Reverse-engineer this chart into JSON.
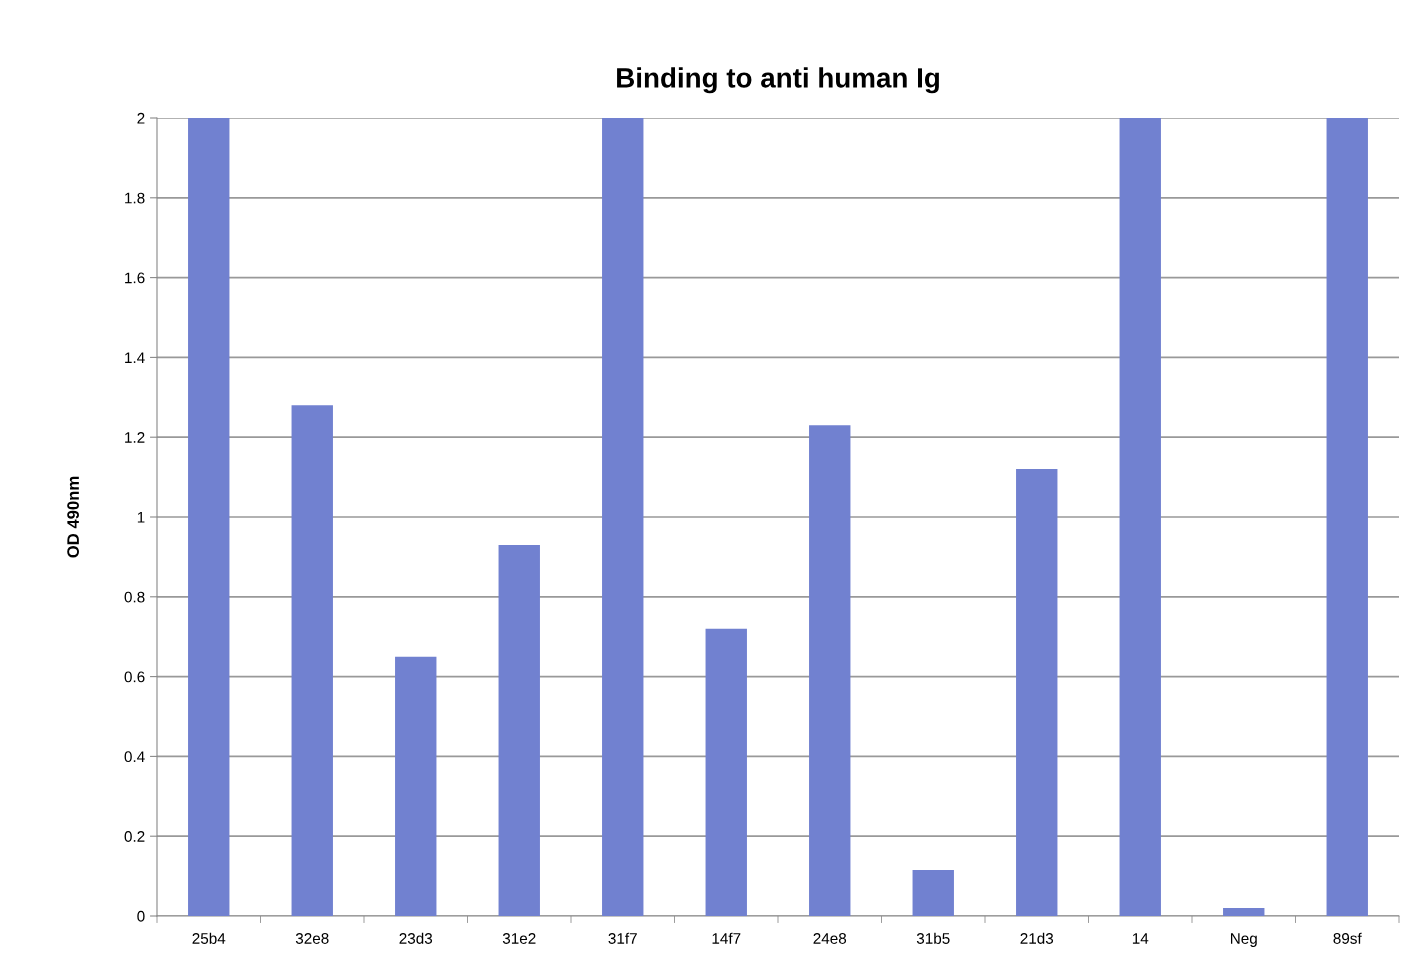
{
  "chart_data": {
    "type": "bar",
    "title": "Binding to anti human Ig",
    "ylabel": "OD 490nm",
    "categories": [
      "25b4",
      "32e8",
      "23d3",
      "31e2",
      "31f7",
      "14f7",
      "24e8",
      "31b5",
      "21d3",
      "14",
      "Neg",
      "89sf"
    ],
    "values": [
      2,
      1.28,
      0.65,
      0.93,
      2,
      0.72,
      1.23,
      0.115,
      1.12,
      2,
      0.02,
      2
    ],
    "color": "#7181d0",
    "ylim": [
      0,
      2
    ],
    "yticks": [
      0,
      0.2,
      0.4,
      0.6,
      0.8,
      1,
      1.2,
      1.4,
      1.6,
      1.8,
      2
    ],
    "grid": "y"
  }
}
